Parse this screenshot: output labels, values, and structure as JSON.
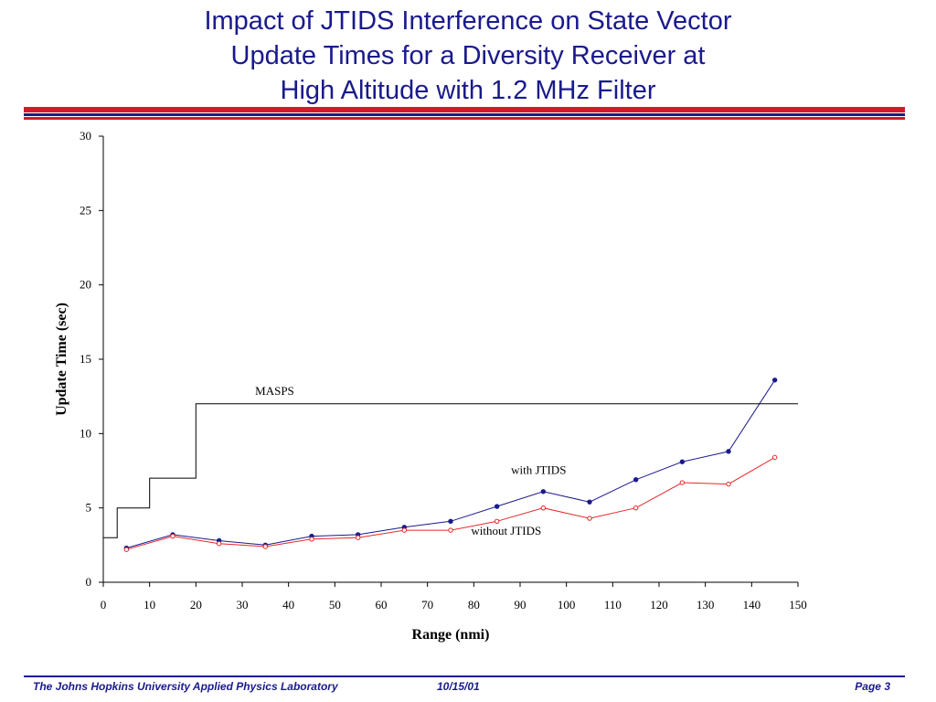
{
  "slide": {
    "title_lines": [
      "Impact of JTIDS Interference on State Vector",
      "Update Times for a Diversity Receiver at",
      "High Altitude with 1.2 MHz Filter"
    ],
    "footer": {
      "org": "The Johns Hopkins University Applied Physics Laboratory",
      "date": "10/15/01",
      "page": "Page 3"
    },
    "colors": {
      "title": "#1a1a8c",
      "rule_red": "#d11a2a",
      "rule_navy": "#1a1a8c"
    }
  },
  "chart_data": {
    "type": "line",
    "xlabel": "Range (nmi)",
    "ylabel": "Update Time (sec)",
    "xlim": [
      0,
      150
    ],
    "ylim": [
      0,
      30
    ],
    "xticks": [
      0,
      10,
      20,
      30,
      40,
      50,
      60,
      70,
      80,
      90,
      100,
      110,
      120,
      130,
      140,
      150
    ],
    "yticks": [
      0,
      5,
      10,
      15,
      20,
      25,
      30
    ],
    "grid": false,
    "series": [
      {
        "name": "with JTIDS",
        "color": "#1a1a8c",
        "marker": "filled-circle",
        "x": [
          5,
          15,
          25,
          35,
          45,
          55,
          65,
          75,
          85,
          95,
          105,
          115,
          125,
          135,
          145
        ],
        "y": [
          2.3,
          3.2,
          2.8,
          2.5,
          3.1,
          3.2,
          3.7,
          4.1,
          5.1,
          6.1,
          5.4,
          6.9,
          8.1,
          8.8,
          13.6
        ]
      },
      {
        "name": "without JTIDS",
        "color": "#e8262a",
        "marker": "open-circle",
        "x": [
          5,
          15,
          25,
          35,
          45,
          55,
          65,
          75,
          85,
          95,
          105,
          115,
          125,
          135,
          145
        ],
        "y": [
          2.2,
          3.1,
          2.6,
          2.4,
          2.9,
          3.0,
          3.5,
          3.5,
          4.1,
          5.0,
          4.3,
          5.0,
          6.7,
          6.6,
          8.4
        ]
      },
      {
        "name": "MASPS",
        "color": "#000000",
        "marker": "none",
        "step": true,
        "x": [
          0,
          3,
          3,
          10,
          10,
          20,
          20,
          150
        ],
        "y": [
          3,
          3,
          5,
          5,
          7,
          7,
          12,
          12
        ]
      }
    ],
    "annotations": [
      {
        "text": "MASPS",
        "x": 37,
        "y": 12.6
      },
      {
        "text": "with JTIDS",
        "x": 94,
        "y": 7.3
      },
      {
        "text": "without JTIDS",
        "x": 87,
        "y": 3.2
      }
    ]
  }
}
